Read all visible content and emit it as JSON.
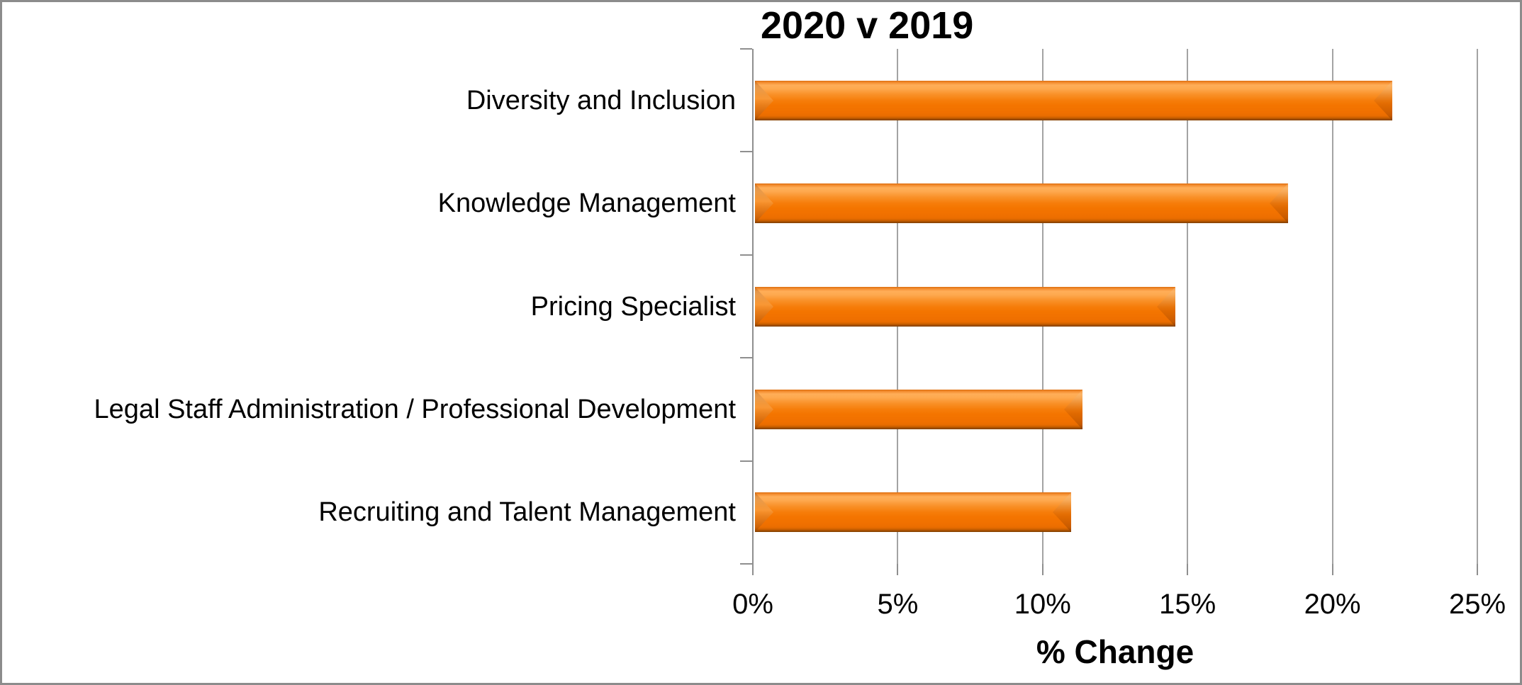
{
  "chart_data": {
    "type": "bar",
    "orientation": "horizontal",
    "title": "2020 v 2019",
    "xlabel": "% Change",
    "categories": [
      "Diversity and Inclusion",
      "Knowledge Management",
      "Pricing Specialist",
      "Legal Staff Administration / Professional Development",
      "Recruiting and Talent Management"
    ],
    "values": [
      22.0,
      18.4,
      14.5,
      11.3,
      10.9
    ],
    "unit": "%",
    "xlim": [
      0,
      25
    ],
    "x_ticks": [
      "0%",
      "5%",
      "10%",
      "15%",
      "20%",
      "25%"
    ],
    "grid": true,
    "legend": "none",
    "colors": {
      "bar_fill": "#F47500",
      "bar_highlight": "#FFAE58",
      "bar_shadow": "#7E3D00",
      "gridline": "#A3A3A3",
      "axis_line": "#8F8F8F",
      "frame_border": "#8C8C8C",
      "text": "#000000",
      "background": "#FFFFFF"
    }
  }
}
